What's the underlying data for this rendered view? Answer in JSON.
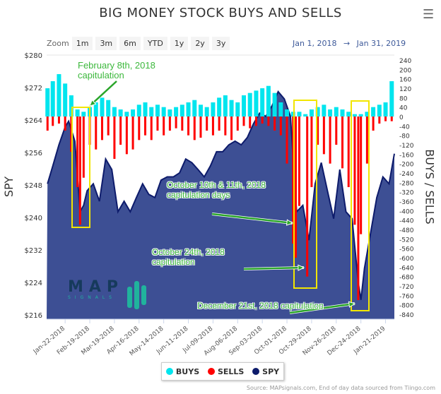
{
  "header": {
    "title": "BIG MONEY STOCK BUYS AND SELLS",
    "menu_icon": "hamburger-icon"
  },
  "zoom": {
    "label": "Zoom",
    "buttons": [
      "1m",
      "3m",
      "6m",
      "YTD",
      "1y",
      "2y",
      "3y"
    ]
  },
  "range": {
    "from": "Jan 1, 2018",
    "arrow": "→",
    "to": "Jan 31, 2019"
  },
  "legend": [
    {
      "label": "BUYS",
      "color": "#00e5ee"
    },
    {
      "label": "SELLS",
      "color": "#ff0000"
    },
    {
      "label": "SPY",
      "color": "#0d1b6b"
    }
  ],
  "source": "Source: MAPsignals.com, End of day data sourced from Tiingo.com",
  "logo": {
    "text": "MAP SIGNALS",
    "tagline": "Tomorrow's top stocks today"
  },
  "annotations": {
    "feb": "February 8th, 2018\ncapitulation",
    "oct10": "October 10th & 11th, 2018\ncapitulation days",
    "oct24": "October 24th, 2018\ncapitulation",
    "dec21": "December 21st, 2018 capitulation"
  },
  "chart_data": {
    "type": "bar+area",
    "title": "BIG MONEY STOCK BUYS AND SELLS",
    "ylabel_left": "SPY",
    "ylabel_right": "BUYS / SELLS",
    "ylim_left": [
      216,
      280
    ],
    "yticks_left": [
      "$216",
      "$224",
      "$232",
      "$240",
      "$248",
      "$256",
      "$264",
      "$272",
      "$280"
    ],
    "ylim_right": [
      -840,
      240
    ],
    "yticks_right": [
      240,
      200,
      160,
      120,
      80,
      40,
      0,
      -40,
      -80,
      -120,
      -160,
      -200,
      -240,
      -280,
      -320,
      -360,
      -400,
      -440,
      -480,
      -520,
      -560,
      -600,
      -640,
      -680,
      -720,
      -760,
      -800,
      -840
    ],
    "xlim": [
      "2018-01-01",
      "2019-01-31"
    ],
    "xticks": [
      "Jan-22-2018",
      "Feb-19-2018",
      "Mar-19-2018",
      "Apr-16-2018",
      "May-14-2018",
      "Jun-11-2018",
      "Jul-09-2018",
      "Aug-06-2018",
      "Sep-03-2018",
      "Oct-01-2018",
      "Oct-29-2018",
      "Nov-26-2018",
      "Dec-24-2018",
      "Jan-21-2019"
    ],
    "grid": true,
    "legend_position": "bottom",
    "spy": {
      "name": "SPY",
      "dates": [
        "2018-01-02",
        "2018-01-08",
        "2018-01-15",
        "2018-01-22",
        "2018-01-26",
        "2018-02-02",
        "2018-02-08",
        "2018-02-12",
        "2018-02-16",
        "2018-02-23",
        "2018-03-02",
        "2018-03-09",
        "2018-03-16",
        "2018-03-23",
        "2018-03-30",
        "2018-04-06",
        "2018-04-13",
        "2018-04-20",
        "2018-04-27",
        "2018-05-04",
        "2018-05-11",
        "2018-05-18",
        "2018-05-25",
        "2018-06-01",
        "2018-06-08",
        "2018-06-15",
        "2018-06-22",
        "2018-06-29",
        "2018-07-06",
        "2018-07-13",
        "2018-07-20",
        "2018-07-27",
        "2018-08-03",
        "2018-08-10",
        "2018-08-17",
        "2018-08-24",
        "2018-08-31",
        "2018-09-07",
        "2018-09-14",
        "2018-09-21",
        "2018-09-28",
        "2018-10-05",
        "2018-10-12",
        "2018-10-19",
        "2018-10-26",
        "2018-11-02",
        "2018-11-09",
        "2018-11-16",
        "2018-11-23",
        "2018-11-30",
        "2018-12-07",
        "2018-12-14",
        "2018-12-21",
        "2018-12-24",
        "2018-12-28",
        "2019-01-04",
        "2019-01-11",
        "2019-01-18",
        "2019-01-25",
        "2019-01-31"
      ],
      "values": [
        248.3,
        252.7,
        257.9,
        262.3,
        263.7,
        258.8,
        241.4,
        243,
        246.6,
        248.3,
        244,
        254.4,
        251.8,
        241.4,
        244,
        241.4,
        244.9,
        248.3,
        245.7,
        244.9,
        249.2,
        250,
        250,
        251,
        254.4,
        253.5,
        251.8,
        250,
        252.7,
        256.2,
        256.2,
        257.9,
        258.8,
        257.9,
        259.7,
        263.1,
        265.7,
        264.9,
        267.5,
        271,
        269.2,
        264.9,
        241.4,
        243,
        234.4,
        248.3,
        253.5,
        246.6,
        239.7,
        251.8,
        241.4,
        239.7,
        224,
        219.7,
        227.5,
        236.2,
        244.9,
        250,
        248.3,
        255.7
      ]
    },
    "buys": {
      "name": "BUYS",
      "dates": [
        "2018-01-02",
        "2018-01-08",
        "2018-01-15",
        "2018-01-22",
        "2018-01-29",
        "2018-02-05",
        "2018-02-12",
        "2018-02-19",
        "2018-02-26",
        "2018-03-05",
        "2018-03-12",
        "2018-03-19",
        "2018-03-26",
        "2018-04-02",
        "2018-04-09",
        "2018-04-16",
        "2018-04-23",
        "2018-04-30",
        "2018-05-07",
        "2018-05-14",
        "2018-05-21",
        "2018-05-28",
        "2018-06-04",
        "2018-06-11",
        "2018-06-18",
        "2018-06-25",
        "2018-07-02",
        "2018-07-09",
        "2018-07-16",
        "2018-07-23",
        "2018-07-30",
        "2018-08-06",
        "2018-08-13",
        "2018-08-20",
        "2018-08-27",
        "2018-09-03",
        "2018-09-10",
        "2018-09-17",
        "2018-09-24",
        "2018-10-01",
        "2018-10-08",
        "2018-10-15",
        "2018-10-22",
        "2018-10-29",
        "2018-11-05",
        "2018-11-12",
        "2018-11-19",
        "2018-11-26",
        "2018-12-03",
        "2018-12-10",
        "2018-12-17",
        "2018-12-24",
        "2018-12-31",
        "2019-01-07",
        "2019-01-14",
        "2019-01-21",
        "2019-01-28"
      ],
      "values": [
        120,
        150,
        180,
        140,
        90,
        30,
        20,
        40,
        60,
        80,
        70,
        40,
        30,
        20,
        30,
        50,
        60,
        40,
        50,
        40,
        30,
        40,
        50,
        60,
        70,
        50,
        40,
        60,
        80,
        90,
        70,
        60,
        90,
        100,
        110,
        120,
        130,
        100,
        60,
        30,
        20,
        20,
        10,
        30,
        40,
        50,
        30,
        40,
        30,
        20,
        10,
        10,
        20,
        40,
        50,
        60,
        150
      ]
    },
    "sells": {
      "name": "SELLS",
      "dates": [
        "2018-01-02",
        "2018-01-08",
        "2018-01-15",
        "2018-01-22",
        "2018-01-29",
        "2018-02-05",
        "2018-02-08",
        "2018-02-12",
        "2018-02-19",
        "2018-02-26",
        "2018-03-05",
        "2018-03-12",
        "2018-03-19",
        "2018-03-26",
        "2018-04-02",
        "2018-04-09",
        "2018-04-16",
        "2018-04-23",
        "2018-04-30",
        "2018-05-07",
        "2018-05-14",
        "2018-05-21",
        "2018-05-28",
        "2018-06-04",
        "2018-06-11",
        "2018-06-18",
        "2018-06-25",
        "2018-07-02",
        "2018-07-09",
        "2018-07-16",
        "2018-07-23",
        "2018-07-30",
        "2018-08-06",
        "2018-08-13",
        "2018-08-20",
        "2018-08-27",
        "2018-09-03",
        "2018-09-10",
        "2018-09-17",
        "2018-09-24",
        "2018-10-01",
        "2018-10-08",
        "2018-10-11",
        "2018-10-15",
        "2018-10-24",
        "2018-10-29",
        "2018-11-05",
        "2018-11-12",
        "2018-11-19",
        "2018-11-26",
        "2018-12-03",
        "2018-12-10",
        "2018-12-17",
        "2018-12-21",
        "2018-12-24",
        "2018-12-31",
        "2019-01-07",
        "2019-01-14",
        "2019-01-21",
        "2019-01-28"
      ],
      "values": [
        -60,
        -40,
        -30,
        -60,
        -150,
        -300,
        -460,
        -260,
        -120,
        -140,
        -100,
        -80,
        -180,
        -120,
        -160,
        -140,
        -100,
        -80,
        -100,
        -60,
        -80,
        -60,
        -50,
        -60,
        -80,
        -100,
        -90,
        -60,
        -80,
        -60,
        -80,
        -100,
        -60,
        -40,
        -50,
        -40,
        -30,
        -40,
        -60,
        -80,
        -200,
        -540,
        -600,
        -380,
        -680,
        -300,
        -120,
        -160,
        -200,
        -120,
        -220,
        -300,
        -460,
        -780,
        -500,
        -200,
        -60,
        -30,
        -20,
        -20
      ]
    }
  }
}
